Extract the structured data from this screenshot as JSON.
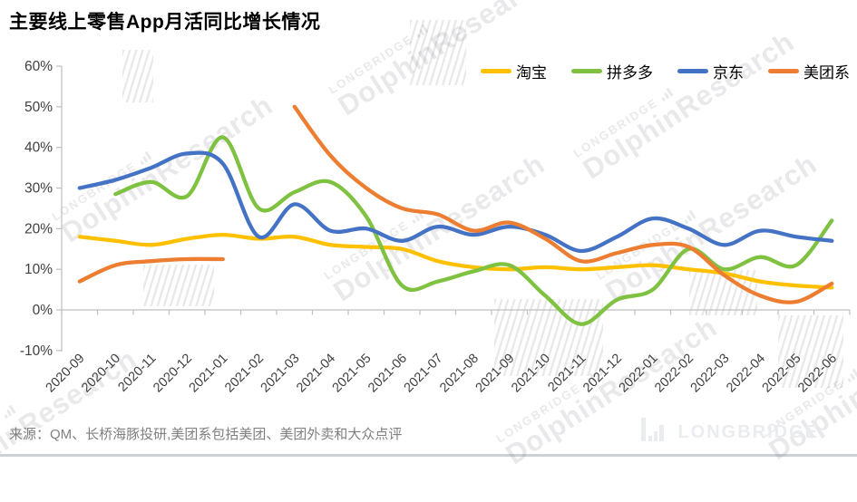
{
  "title": "主要线上零售App月活同比增长情况",
  "source_note": "来源：QM、长桥海豚投研,美团系包括美团、美团外卖和大众点评",
  "watermark": {
    "small": "LONGBRIDGE",
    "big": "DolphinResearch"
  },
  "logo": {
    "text": "LONGBRIDGE"
  },
  "axis_color": "#bfbfbf",
  "label_color": "#404040",
  "chart_data": {
    "type": "line",
    "title": "主要线上零售App月活同比增长情况",
    "smooth": true,
    "grid": false,
    "legend_position": "top-right",
    "xlabel": "",
    "ylabel": "",
    "ylim": [
      -10,
      60
    ],
    "y_ticks": [
      "60%",
      "50%",
      "40%",
      "30%",
      "20%",
      "10%",
      "0%",
      "-10%"
    ],
    "y_tick_values": [
      60,
      50,
      40,
      30,
      20,
      10,
      0,
      -10
    ],
    "categories": [
      "2020-09",
      "2020-10",
      "2020-11",
      "2020-12",
      "2021-01",
      "2021-02",
      "2021-03",
      "2021-04",
      "2021-05",
      "2021-06",
      "2021-07",
      "2021-08",
      "2021-09",
      "2021-10",
      "2021-11",
      "2021-12",
      "2022-01",
      "2022-02",
      "2022-03",
      "2022-04",
      "2022-05",
      "2022-06"
    ],
    "series": [
      {
        "name": "淘宝",
        "color": "#FFC000",
        "values": [
          18,
          17,
          16,
          17.5,
          18.5,
          17.5,
          18,
          16,
          15.5,
          15,
          12,
          10.5,
          10,
          10.5,
          10,
          10.5,
          11,
          10,
          9,
          7,
          6,
          5.5
        ]
      },
      {
        "name": "拼多多",
        "color": "#7FC241",
        "values": [
          null,
          28.5,
          31.5,
          28,
          42.5,
          25,
          29,
          31.5,
          23,
          6,
          7,
          9.5,
          11,
          3.5,
          -3.5,
          2.5,
          5,
          15,
          10,
          13,
          11,
          22
        ]
      },
      {
        "name": "京东",
        "color": "#4472C4",
        "values": [
          30,
          32,
          35,
          38.5,
          36,
          18,
          26,
          19.5,
          20,
          17,
          20.5,
          18.5,
          20.5,
          18.5,
          14.5,
          18,
          22.5,
          20,
          16,
          19.5,
          18,
          17
        ]
      },
      {
        "name": "美团系",
        "color": "#ED7D31",
        "values": [
          7,
          11,
          12,
          12.5,
          12.5,
          null,
          50,
          38,
          30,
          25,
          23.5,
          19.5,
          21.5,
          17.5,
          12,
          14,
          16,
          15.5,
          8.5,
          3.5,
          2,
          6.5
        ]
      }
    ]
  }
}
